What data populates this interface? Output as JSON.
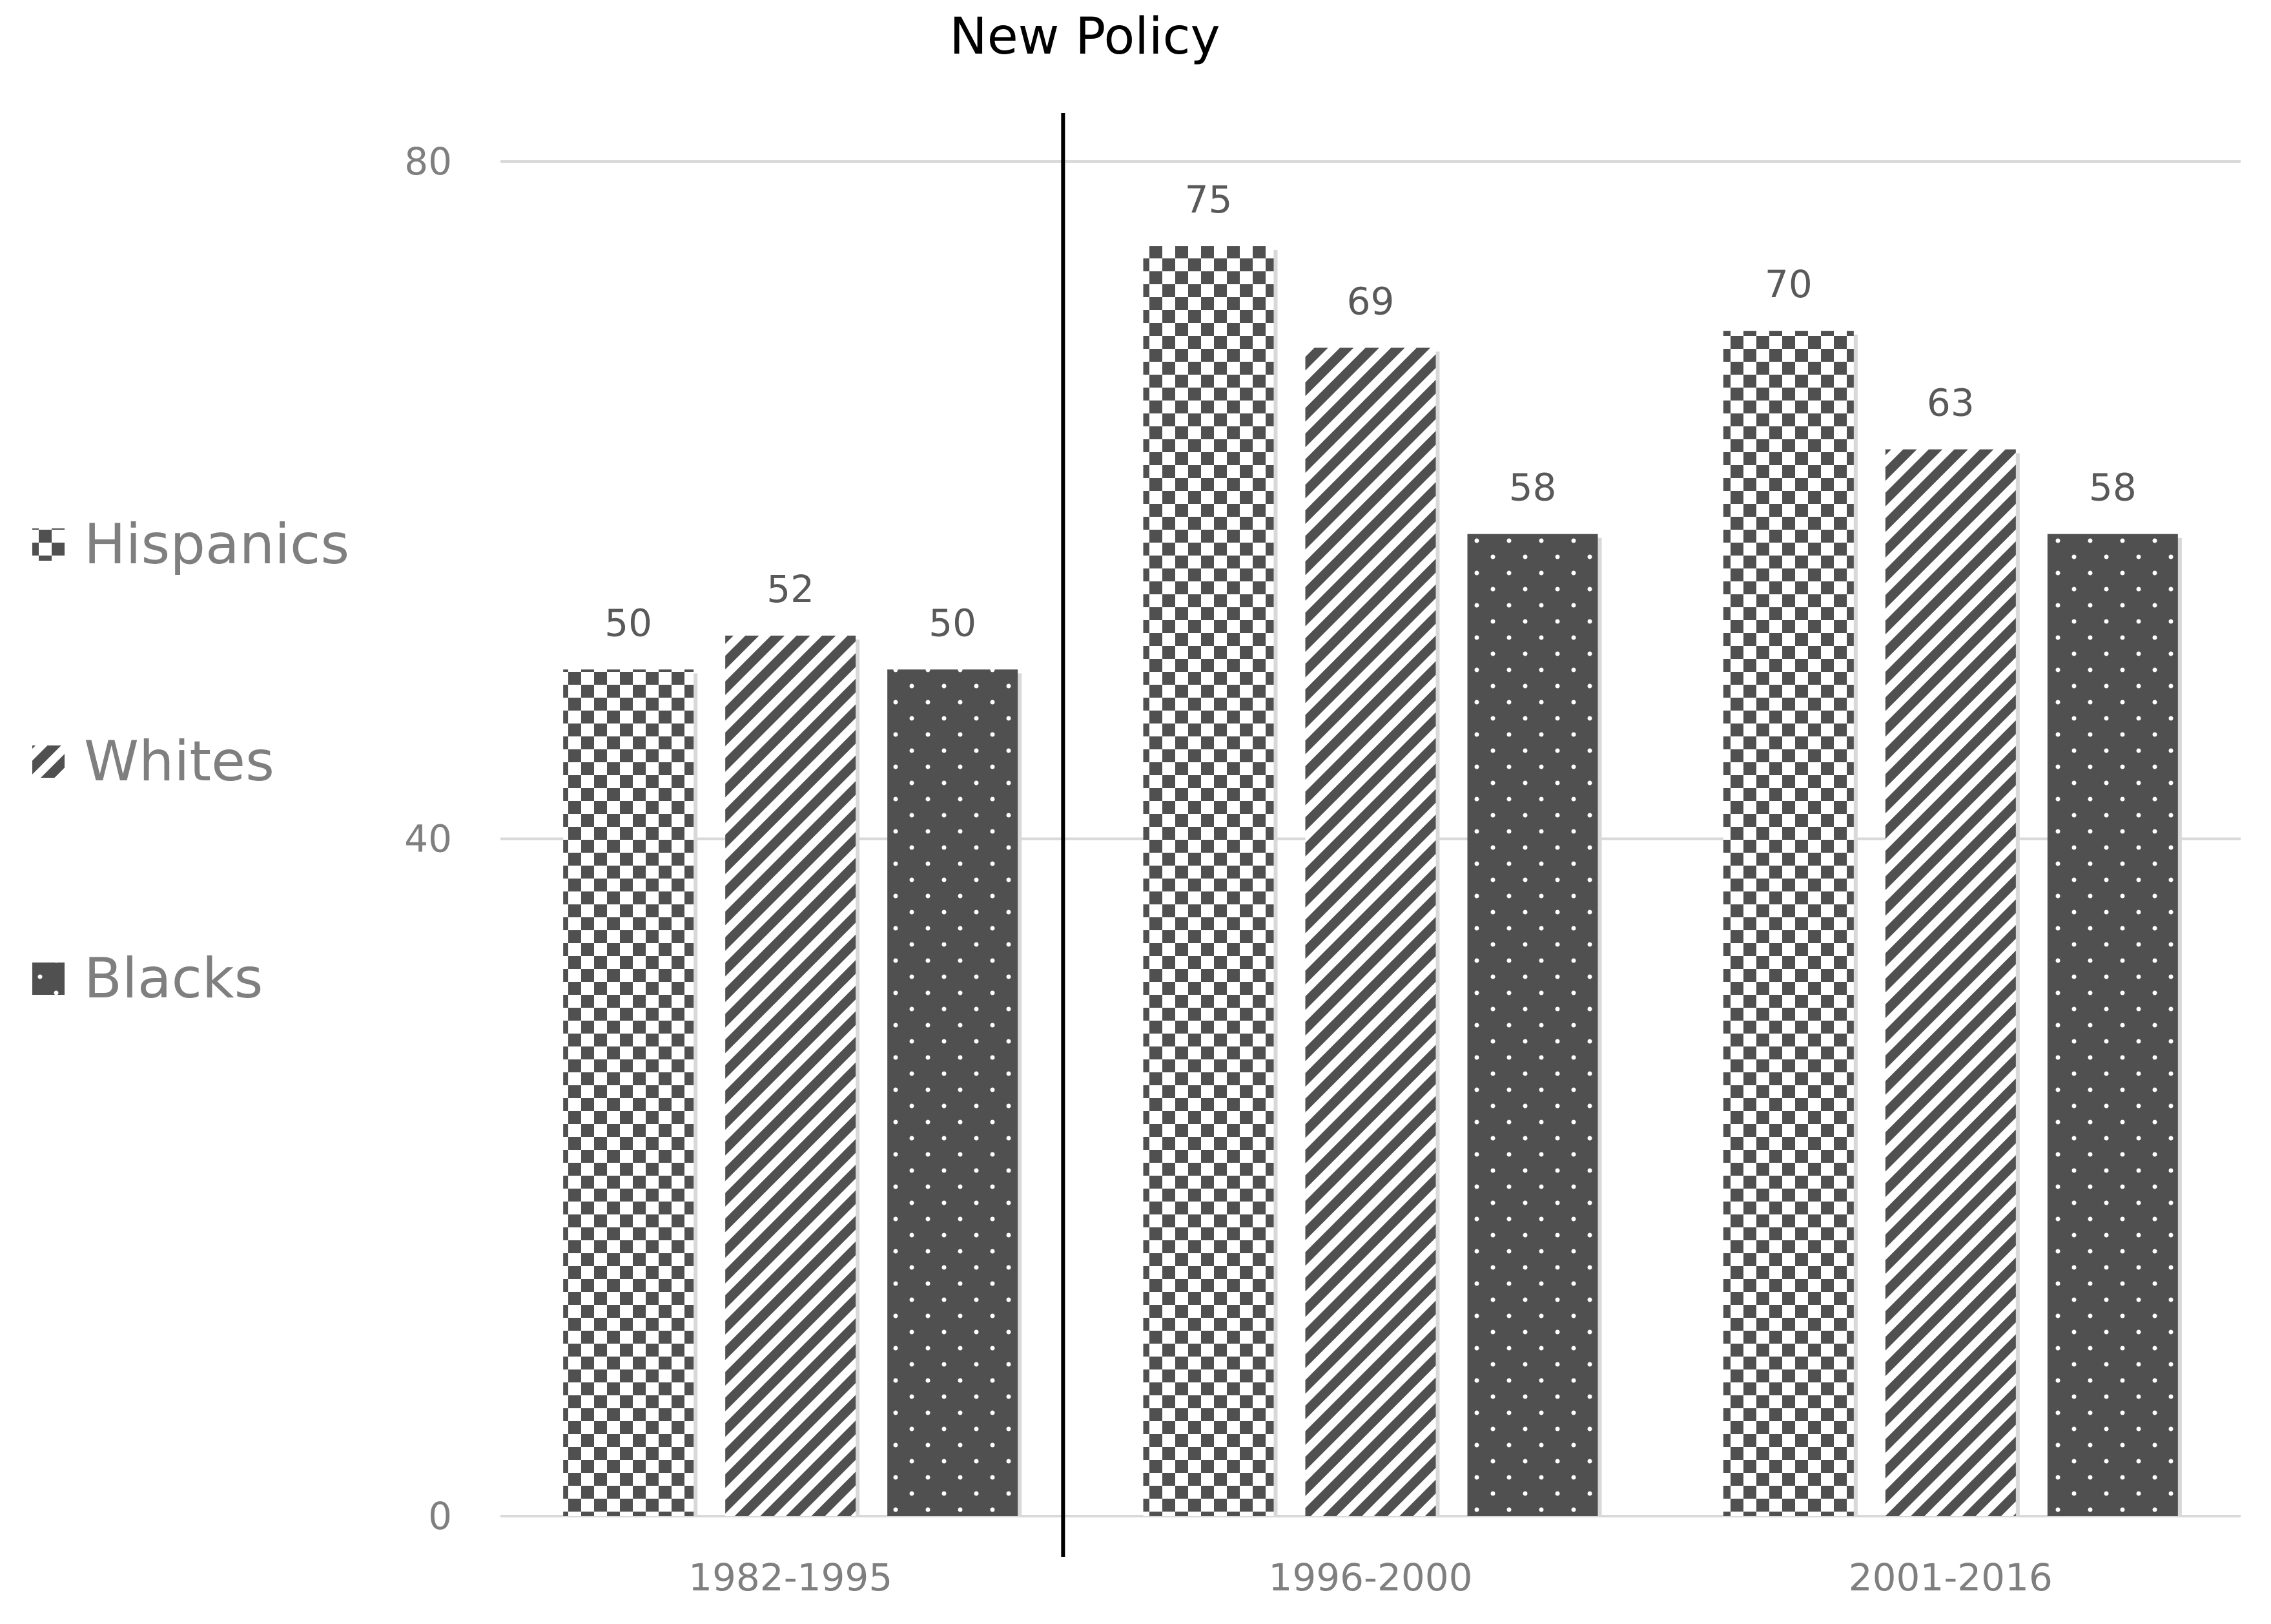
{
  "chart_data": {
    "type": "bar",
    "categories": [
      "1982-1995",
      "1996-2000",
      "2001-2016"
    ],
    "series": [
      {
        "name": "Hispanics",
        "values": [
          50,
          75,
          70
        ],
        "pattern": "checker"
      },
      {
        "name": "Whites",
        "values": [
          52,
          69,
          63
        ],
        "pattern": "diagonal-stripes"
      },
      {
        "name": "Blacks",
        "values": [
          50,
          58,
          58
        ],
        "pattern": "dots"
      }
    ],
    "title": "",
    "xlabel": "",
    "ylabel": "",
    "ylim": [
      0,
      80
    ],
    "yticks": [
      0,
      40,
      80
    ],
    "grid": true,
    "legend": "left",
    "data_labels": true,
    "annotation": {
      "text": "New  Policy",
      "between": [
        "1982-1995",
        "1996-2000"
      ]
    },
    "colors": {
      "bar_dark": "#505050",
      "grid": "#d9d9d9",
      "axis_text": "#7f7f7f",
      "label_text": "#595959",
      "divider": "#000000"
    }
  }
}
